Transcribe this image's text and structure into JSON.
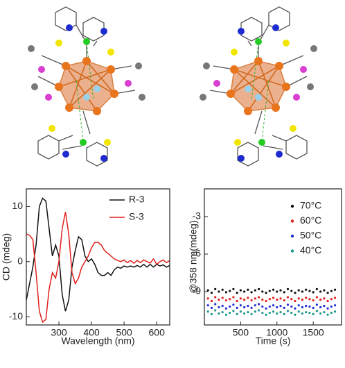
{
  "chart_data": [
    {
      "type": "line",
      "x_label": "Wavelength (nm)",
      "y_label": "CD (mdeg)",
      "x": [
        200,
        210,
        220,
        230,
        240,
        250,
        260,
        270,
        280,
        290,
        300,
        310,
        320,
        330,
        340,
        350,
        360,
        370,
        380,
        390,
        400,
        410,
        420,
        430,
        440,
        450,
        460,
        470,
        480,
        490,
        500,
        510,
        520,
        530,
        540,
        550,
        560,
        570,
        580,
        590,
        600,
        610,
        620,
        630,
        640
      ],
      "series": [
        {
          "name": "R-3",
          "color": "#111111",
          "values": [
            -7,
            -4,
            -1,
            3,
            10,
            11.5,
            11,
            6,
            1,
            3,
            1,
            -6,
            -9,
            -7,
            -1,
            2,
            4.5,
            4,
            1,
            0,
            0.5,
            -0.5,
            -2,
            -2.5,
            -2.5,
            -2,
            -2.5,
            -1.5,
            -1,
            -1.2,
            -0.8,
            -1,
            -0.8,
            -1,
            -0.7,
            -1,
            -0.5,
            -1,
            -0.5,
            -1,
            -0.5,
            -0.8,
            -0.6,
            -1,
            -0.7
          ]
        },
        {
          "name": "S-3",
          "color": "#e0201b",
          "values": [
            5,
            4.8,
            4,
            -2,
            -9,
            -11,
            -10.5,
            -5,
            -2,
            -3,
            0,
            6,
            9,
            5,
            -2,
            -4,
            -3,
            -1,
            0,
            1,
            2.5,
            3.5,
            3.5,
            3,
            2,
            1.5,
            1,
            0.5,
            0.2,
            0,
            0.3,
            -0.2,
            0.2,
            -0.3,
            0.2,
            -0.2,
            0.3,
            0,
            -0.3,
            0.5,
            -0.5,
            0,
            0.3,
            -0.2,
            0.2
          ]
        }
      ],
      "xlim": [
        200,
        640
      ],
      "xticks": [
        300,
        400,
        500,
        600
      ],
      "ylim": [
        -11.5,
        13.2
      ],
      "yticks": [
        -10,
        0,
        10
      ],
      "legend": "upper right"
    },
    {
      "type": "scatter",
      "x_label": "Time (s)",
      "y_label": "@358 nm(mdeg)",
      "x": [
        50,
        100,
        150,
        200,
        250,
        300,
        350,
        400,
        450,
        500,
        550,
        600,
        650,
        700,
        750,
        800,
        850,
        900,
        950,
        1000,
        1050,
        1100,
        1150,
        1200,
        1250,
        1300,
        1350,
        1400,
        1450,
        1500,
        1550,
        1600,
        1650,
        1700,
        1750,
        1800
      ],
      "series": [
        {
          "name": "70°C",
          "color": "#111111",
          "values": [
            -8.9,
            -9.1,
            -8.8,
            -9.0,
            -8.85,
            -9.05,
            -8.95,
            -8.8,
            -9.1,
            -8.9,
            -9.0,
            -8.85,
            -9.05,
            -8.9,
            -8.8,
            -9.0,
            -9.1,
            -8.95,
            -8.85,
            -9.0,
            -8.9,
            -9.05,
            -8.8,
            -8.95,
            -9.1,
            -8.9,
            -9.0,
            -8.85,
            -8.95,
            -9.05,
            -8.8,
            -9.0,
            -8.9,
            -9.1,
            -8.95,
            -8.85
          ]
        },
        {
          "name": "60°C",
          "color": "#e0201b",
          "values": [
            -9.55,
            -9.75,
            -9.45,
            -9.65,
            -9.5,
            -9.7,
            -9.6,
            -9.45,
            -9.75,
            -9.55,
            -9.65,
            -9.5,
            -9.7,
            -9.55,
            -9.45,
            -9.65,
            -9.75,
            -9.6,
            -9.5,
            -9.65,
            -9.55,
            -9.7,
            -9.45,
            -9.6,
            -9.75,
            -9.55,
            -9.65,
            -9.5,
            -9.6,
            -9.7,
            -9.45,
            -9.65,
            -9.55,
            -9.75,
            -9.6,
            -9.5
          ]
        },
        {
          "name": "50°C",
          "color": "#1f2fd6",
          "values": [
            -10.1,
            -10.3,
            -10.0,
            -10.25,
            -10.15,
            -10.35,
            -10.2,
            -10.05,
            -10.3,
            -10.1,
            -10.25,
            -10.15,
            -10.3,
            -10.1,
            -10.0,
            -10.2,
            -10.35,
            -10.2,
            -10.1,
            -10.25,
            -10.15,
            -10.3,
            -10.05,
            -10.2,
            -10.35,
            -10.1,
            -10.25,
            -10.15,
            -10.2,
            -10.3,
            -10.05,
            -10.25,
            -10.15,
            -10.35,
            -10.2,
            -10.1
          ]
        },
        {
          "name": "40°C",
          "color": "#1a9a8a",
          "values": [
            -10.6,
            -10.8,
            -10.5,
            -10.75,
            -10.65,
            -10.85,
            -10.7,
            -10.55,
            -10.8,
            -10.6,
            -10.75,
            -10.65,
            -10.8,
            -10.6,
            -10.5,
            -10.7,
            -10.85,
            -10.7,
            -10.6,
            -10.75,
            -10.65,
            -10.8,
            -10.55,
            -10.7,
            -10.85,
            -10.6,
            -10.75,
            -10.65,
            -10.7,
            -10.8,
            -10.55,
            -10.75,
            -10.65,
            -10.85,
            -10.7,
            -10.6
          ]
        }
      ],
      "xlim": [
        0,
        1890
      ],
      "xticks": [
        500,
        1000,
        1500
      ],
      "ylim": [
        -11.67,
        -0.78
      ],
      "yticks": [
        -3,
        -6,
        -9
      ],
      "legend": "upper right"
    }
  ]
}
